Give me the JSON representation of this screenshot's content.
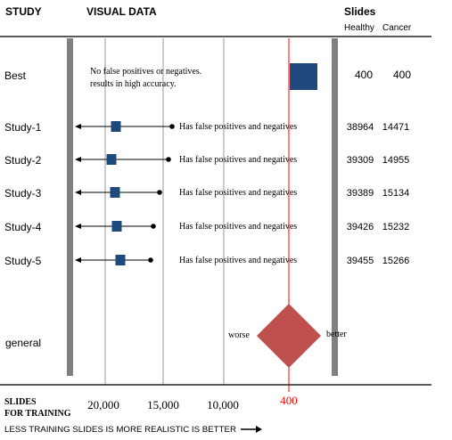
{
  "chart_data": {
    "type": "forest",
    "headers": {
      "study": "STUDY",
      "visual": "VISUAL DATA",
      "slides": "Slides",
      "healthy": "Healthy",
      "cancer": "Cancer"
    },
    "x_axis": {
      "title_line1": "SLIDES",
      "title_line2": "FOR TRAINING",
      "ticks": [
        "20,000",
        "15,000",
        "10,000"
      ],
      "reference_label": "400",
      "footer": "LESS TRAINING SLIDES IS MORE REALISTIC IS BETTER"
    },
    "rows": [
      {
        "label": "Best",
        "note": "No false positives or negatives. results in high accuracy.",
        "healthy": "400",
        "cancer": "400"
      },
      {
        "label": "Study-1",
        "note": "Has false positives and negatives",
        "healthy": "38964",
        "cancer": "14471"
      },
      {
        "label": "Study-2",
        "note": "Has false positives and negatives",
        "healthy": "39309",
        "cancer": "14955"
      },
      {
        "label": "Study-3",
        "note": "Has false positives and negatives",
        "healthy": "39389",
        "cancer": "15134"
      },
      {
        "label": "Study-4",
        "note": "Has false positives and negatives",
        "healthy": "39426",
        "cancer": "15232"
      },
      {
        "label": "Study-5",
        "note": "Has false positives and negatives",
        "healthy": "39455",
        "cancer": "15266"
      }
    ],
    "general": {
      "label": "general",
      "worse": "worse",
      "better": "better"
    },
    "colors": {
      "marker": "#1f497d",
      "summary": "#c0504d",
      "reference_line": "#ff0000",
      "divider": "#808080"
    }
  }
}
